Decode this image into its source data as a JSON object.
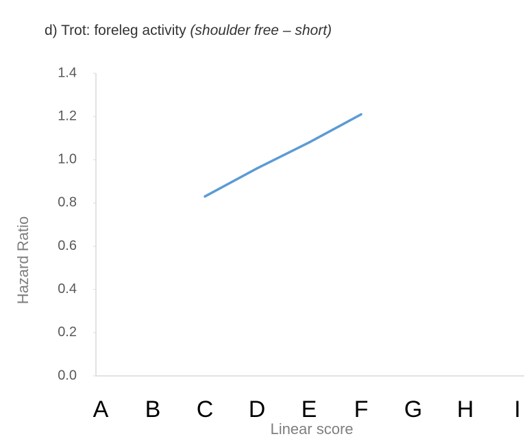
{
  "chart_data": {
    "type": "line",
    "title": "d) Trot: foreleg activity",
    "title_italic": "(shoulder free – short)",
    "x_label": "Linear score",
    "y_label": "Hazard Ratio",
    "categories": [
      "A",
      "B",
      "C",
      "D",
      "E",
      "F",
      "G",
      "H",
      "I"
    ],
    "series": [
      {
        "color": "#5b9bd5",
        "values": [
          null,
          null,
          0.83,
          0.96,
          1.08,
          1.21,
          null,
          null,
          null
        ]
      }
    ],
    "ylim": [
      0,
      1.4
    ],
    "yticks": [
      {
        "value": 0,
        "label": "0.0"
      },
      0.2,
      0.4,
      0.6,
      0.8,
      {
        "value": 1,
        "label": "1.0"
      },
      1.2,
      1.4
    ]
  }
}
